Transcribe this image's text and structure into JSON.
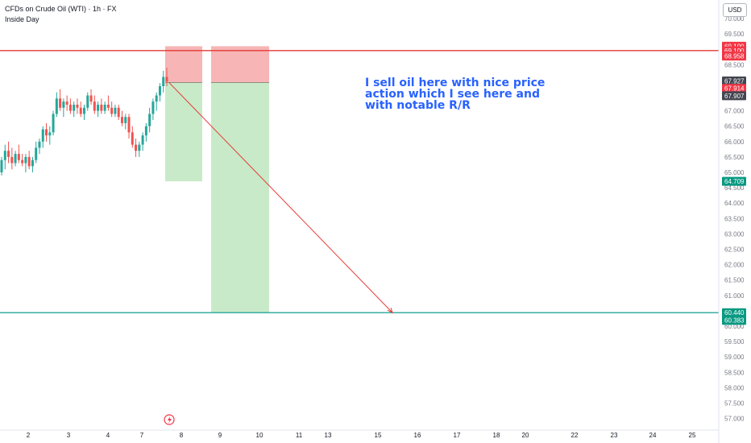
{
  "header": {
    "symbol": "CFDs on Crude Oil (WTI) · 1h · FX",
    "indicator": "Inside Day",
    "currency": "USD"
  },
  "annotation": {
    "text": "I sell oil here with nice price action which I see here and with notable R/R"
  },
  "colors": {
    "up_candle": "#26a69a",
    "down_candle": "#ef5350",
    "resistance_line": "#e53935",
    "support_line": "#26a69a",
    "stop_zone": "#f7b5b5",
    "target_zone": "#c8eac8",
    "arrow": "#e53935",
    "annotation": "#2962ff"
  },
  "chart_data": {
    "type": "candlestick",
    "ylim": [
      56.9,
      70.3
    ],
    "y_ticks": [
      "70.000",
      "69.500",
      "69.000",
      "68.500",
      "68.000",
      "67.500",
      "67.000",
      "66.500",
      "66.000",
      "65.500",
      "65.000",
      "64.500",
      "64.000",
      "63.500",
      "63.000",
      "62.500",
      "62.000",
      "61.500",
      "61.000",
      "60.500",
      "60.000",
      "59.500",
      "59.000",
      "58.500",
      "58.000",
      "57.500",
      "57.000"
    ],
    "x_ticks": [
      "2",
      "3",
      "4",
      "7",
      "8",
      "9",
      "10",
      "11",
      "13",
      "15",
      "16",
      "17",
      "18",
      "20",
      "22",
      "23",
      "24",
      "25"
    ],
    "candles": [
      {
        "o": 65.0,
        "h": 65.5,
        "l": 64.9,
        "c": 65.4
      },
      {
        "o": 65.4,
        "h": 65.9,
        "l": 65.1,
        "c": 65.7
      },
      {
        "o": 65.7,
        "h": 66.0,
        "l": 65.3,
        "c": 65.5
      },
      {
        "o": 65.5,
        "h": 65.8,
        "l": 65.1,
        "c": 65.3
      },
      {
        "o": 65.3,
        "h": 65.7,
        "l": 65.2,
        "c": 65.6
      },
      {
        "o": 65.6,
        "h": 65.9,
        "l": 65.3,
        "c": 65.4
      },
      {
        "o": 65.4,
        "h": 65.6,
        "l": 65.2,
        "c": 65.3
      },
      {
        "o": 65.3,
        "h": 65.6,
        "l": 65.0,
        "c": 65.5
      },
      {
        "o": 65.5,
        "h": 65.7,
        "l": 65.1,
        "c": 65.2
      },
      {
        "o": 65.2,
        "h": 65.5,
        "l": 65.0,
        "c": 65.4
      },
      {
        "o": 65.4,
        "h": 66.0,
        "l": 65.3,
        "c": 65.8
      },
      {
        "o": 65.8,
        "h": 66.1,
        "l": 65.6,
        "c": 66.0
      },
      {
        "o": 66.0,
        "h": 66.5,
        "l": 65.8,
        "c": 66.4
      },
      {
        "o": 66.4,
        "h": 66.6,
        "l": 66.0,
        "c": 66.2
      },
      {
        "o": 66.2,
        "h": 66.5,
        "l": 65.9,
        "c": 66.3
      },
      {
        "o": 66.3,
        "h": 67.0,
        "l": 66.2,
        "c": 66.9
      },
      {
        "o": 66.9,
        "h": 67.6,
        "l": 66.8,
        "c": 67.4
      },
      {
        "o": 67.4,
        "h": 67.7,
        "l": 67.0,
        "c": 67.1
      },
      {
        "o": 67.1,
        "h": 67.4,
        "l": 66.8,
        "c": 67.3
      },
      {
        "o": 67.3,
        "h": 67.5,
        "l": 67.0,
        "c": 67.2
      },
      {
        "o": 67.2,
        "h": 67.4,
        "l": 66.9,
        "c": 67.0
      },
      {
        "o": 67.0,
        "h": 67.3,
        "l": 66.8,
        "c": 67.2
      },
      {
        "o": 67.2,
        "h": 67.4,
        "l": 66.9,
        "c": 67.1
      },
      {
        "o": 67.1,
        "h": 67.3,
        "l": 66.8,
        "c": 66.9
      },
      {
        "o": 66.9,
        "h": 67.2,
        "l": 66.7,
        "c": 67.1
      },
      {
        "o": 67.1,
        "h": 67.6,
        "l": 67.0,
        "c": 67.5
      },
      {
        "o": 67.5,
        "h": 67.7,
        "l": 67.2,
        "c": 67.3
      },
      {
        "o": 67.3,
        "h": 67.5,
        "l": 66.9,
        "c": 67.0
      },
      {
        "o": 67.0,
        "h": 67.3,
        "l": 66.8,
        "c": 67.2
      },
      {
        "o": 67.2,
        "h": 67.4,
        "l": 66.9,
        "c": 67.0
      },
      {
        "o": 67.0,
        "h": 67.3,
        "l": 66.9,
        "c": 67.2
      },
      {
        "o": 67.2,
        "h": 67.5,
        "l": 67.0,
        "c": 67.1
      },
      {
        "o": 67.1,
        "h": 67.3,
        "l": 66.8,
        "c": 66.9
      },
      {
        "o": 66.9,
        "h": 67.2,
        "l": 66.8,
        "c": 67.1
      },
      {
        "o": 67.1,
        "h": 67.2,
        "l": 66.7,
        "c": 66.8
      },
      {
        "o": 66.8,
        "h": 67.0,
        "l": 66.5,
        "c": 66.6
      },
      {
        "o": 66.6,
        "h": 66.9,
        "l": 66.4,
        "c": 66.8
      },
      {
        "o": 66.8,
        "h": 66.9,
        "l": 66.1,
        "c": 66.3
      },
      {
        "o": 66.3,
        "h": 66.5,
        "l": 65.8,
        "c": 65.9
      },
      {
        "o": 65.9,
        "h": 66.1,
        "l": 65.5,
        "c": 65.7
      },
      {
        "o": 65.7,
        "h": 66.0,
        "l": 65.5,
        "c": 65.9
      },
      {
        "o": 65.9,
        "h": 66.3,
        "l": 65.7,
        "c": 66.2
      },
      {
        "o": 66.2,
        "h": 66.6,
        "l": 66.0,
        "c": 66.5
      },
      {
        "o": 66.5,
        "h": 67.1,
        "l": 66.3,
        "c": 66.9
      },
      {
        "o": 66.9,
        "h": 67.4,
        "l": 66.7,
        "c": 67.3
      },
      {
        "o": 67.3,
        "h": 67.6,
        "l": 67.0,
        "c": 67.5
      },
      {
        "o": 67.5,
        "h": 67.9,
        "l": 67.3,
        "c": 67.8
      },
      {
        "o": 67.8,
        "h": 68.3,
        "l": 67.6,
        "c": 68.1
      },
      {
        "o": 68.1,
        "h": 68.4,
        "l": 67.8,
        "c": 67.95
      }
    ],
    "horizontal_lines": [
      {
        "name": "resistance",
        "y": 68.958
      },
      {
        "name": "target",
        "y": 60.44
      }
    ],
    "trade_zones": [
      {
        "name": "stop-1",
        "y0": 67.914,
        "y1": 69.1
      },
      {
        "name": "target-1",
        "y0": 64.709,
        "y1": 67.914
      },
      {
        "name": "stop-2",
        "y0": 67.914,
        "y1": 69.1
      },
      {
        "name": "target-2",
        "y0": 60.44,
        "y1": 67.914
      }
    ],
    "price_labels": [
      {
        "text": "69.100",
        "y": 69.1,
        "bg": "#f23645"
      },
      {
        "text": "69.100",
        "y": 68.95,
        "bg": "#f23645"
      },
      {
        "text": "68.958",
        "y": 68.78,
        "bg": "#f23645"
      },
      {
        "text": "67.927",
        "y": 67.97,
        "bg": "#434651"
      },
      {
        "text": "67.914",
        "y": 67.73,
        "bg": "#f23645"
      },
      {
        "text": "67.907",
        "y": 67.49,
        "bg": "#434651"
      },
      {
        "text": "64.709",
        "y": 64.709,
        "bg": "#089981"
      },
      {
        "text": "60.440",
        "y": 60.44,
        "bg": "#089981"
      },
      {
        "text": "60.383",
        "y": 60.19,
        "bg": "#089981"
      }
    ],
    "projection": {
      "start_y": 67.914,
      "end_y": 60.44
    }
  }
}
